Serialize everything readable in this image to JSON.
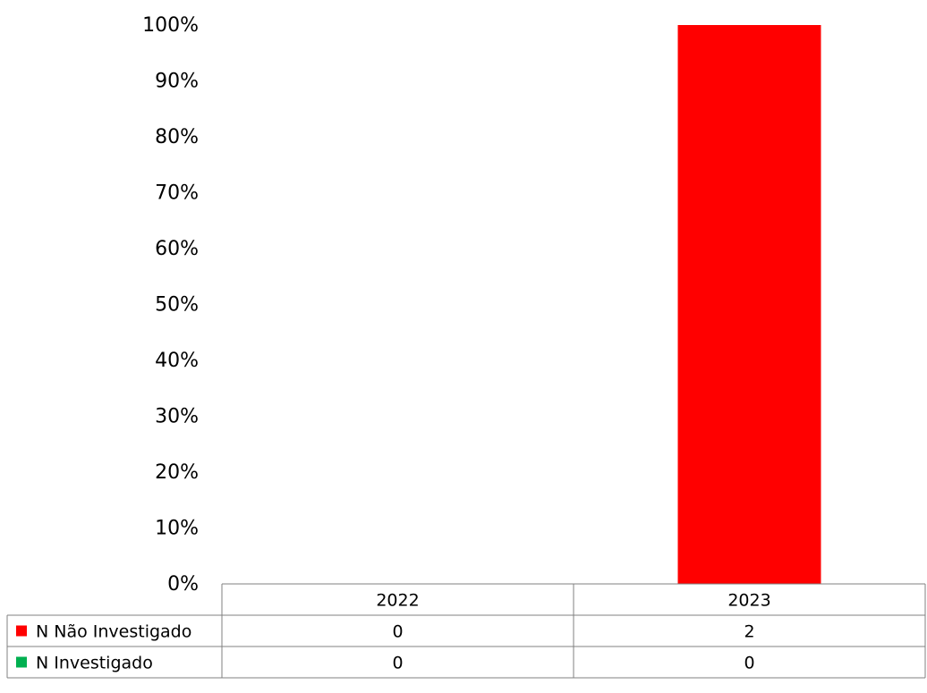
{
  "chart_data": {
    "type": "bar",
    "stacking": "percent",
    "categories": [
      "2022",
      "2023"
    ],
    "series": [
      {
        "name": "N Não Investigado",
        "values": [
          0,
          2
        ],
        "color": "#ff0000"
      },
      {
        "name": "N Investigado",
        "values": [
          0,
          0
        ],
        "color": "#00b050"
      }
    ],
    "y_tick_labels": [
      "0%",
      "10%",
      "20%",
      "30%",
      "40%",
      "50%",
      "60%",
      "70%",
      "80%",
      "90%",
      "100%"
    ],
    "ylim": [
      0,
      100
    ],
    "grid": false,
    "legend": "data-table"
  }
}
